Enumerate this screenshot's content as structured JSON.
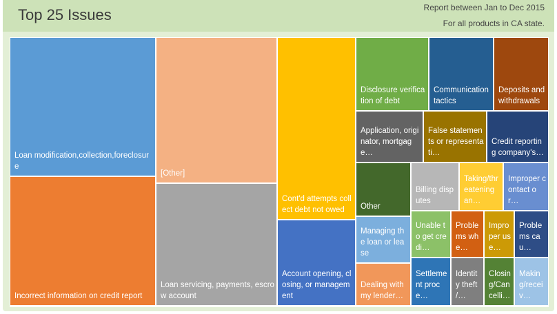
{
  "header": {
    "title": "Top 25 Issues",
    "subtitle_line1": "Report between Jan to Dec 2015",
    "subtitle_line2": "For all products in CA state."
  },
  "chart_data": {
    "type": "treemap",
    "title": "Top 25 Issues",
    "items": [
      {
        "label": "Loan modification,collection,foreclosure",
        "color": "#5b9bd5",
        "text_color": "#ffffff"
      },
      {
        "label": "Incorrect information on credit report",
        "color": "#ed7d31",
        "text_color": "#ffffff"
      },
      {
        "label": "[Other]",
        "color": "#f4b183",
        "text_color": "#ffffff"
      },
      {
        "label": "Loan servicing, payments, escrow account",
        "color": "#a5a5a5",
        "text_color": "#ffffff"
      },
      {
        "label": "Cont'd attempts collect debt not owed",
        "color": "#ffc000",
        "text_color": "#ffffff"
      },
      {
        "label": "Account opening, closing, or management",
        "color": "#4472c4",
        "text_color": "#ffffff"
      },
      {
        "label": "Disclosure verification of debt",
        "color": "#70ad47",
        "text_color": "#ffffff"
      },
      {
        "label": "Communication tactics",
        "color": "#255e91",
        "text_color": "#ffffff"
      },
      {
        "label": "Deposits and withdrawals",
        "color": "#9e480e",
        "text_color": "#ffffff"
      },
      {
        "label": "Application, originator, mortgage…",
        "color": "#636363",
        "text_color": "#ffffff"
      },
      {
        "label": "False statements or representati…",
        "color": "#997300",
        "text_color": "#ffffff"
      },
      {
        "label": "Credit reporting company's…",
        "color": "#264478",
        "text_color": "#ffffff"
      },
      {
        "label": "Other",
        "color": "#43682b",
        "text_color": "#ffffff"
      },
      {
        "label": "Billing disputes",
        "color": "#b7b7b7",
        "text_color": "#ffffff"
      },
      {
        "label": "Taking/threatening an…",
        "color": "#ffcd33",
        "text_color": "#ffffff"
      },
      {
        "label": "Improper contact or…",
        "color": "#698ed0",
        "text_color": "#ffffff"
      },
      {
        "label": "Managing the loan or lease",
        "color": "#7cafdd",
        "text_color": "#ffffff"
      },
      {
        "label": "Unable to get credi…",
        "color": "#8cc168",
        "text_color": "#ffffff"
      },
      {
        "label": "Problems whe…",
        "color": "#d26012",
        "text_color": "#ffffff"
      },
      {
        "label": "Improper use…",
        "color": "#cc9a06",
        "text_color": "#ffffff"
      },
      {
        "label": "Problems cau…",
        "color": "#2e4d86",
        "text_color": "#ffffff"
      },
      {
        "label": "Dealing with my lender…",
        "color": "#f1975a",
        "text_color": "#ffffff"
      },
      {
        "label": "Settlement proce…",
        "color": "#2e75b6",
        "text_color": "#ffffff"
      },
      {
        "label": "Identity theft /…",
        "color": "#7f7f7f",
        "text_color": "#ffffff"
      },
      {
        "label": "Closing/Cancelli…",
        "color": "#548235",
        "text_color": "#ffffff"
      },
      {
        "label": "Making/receiv…",
        "color": "#9dc3e6",
        "text_color": "#ffffff"
      }
    ]
  }
}
